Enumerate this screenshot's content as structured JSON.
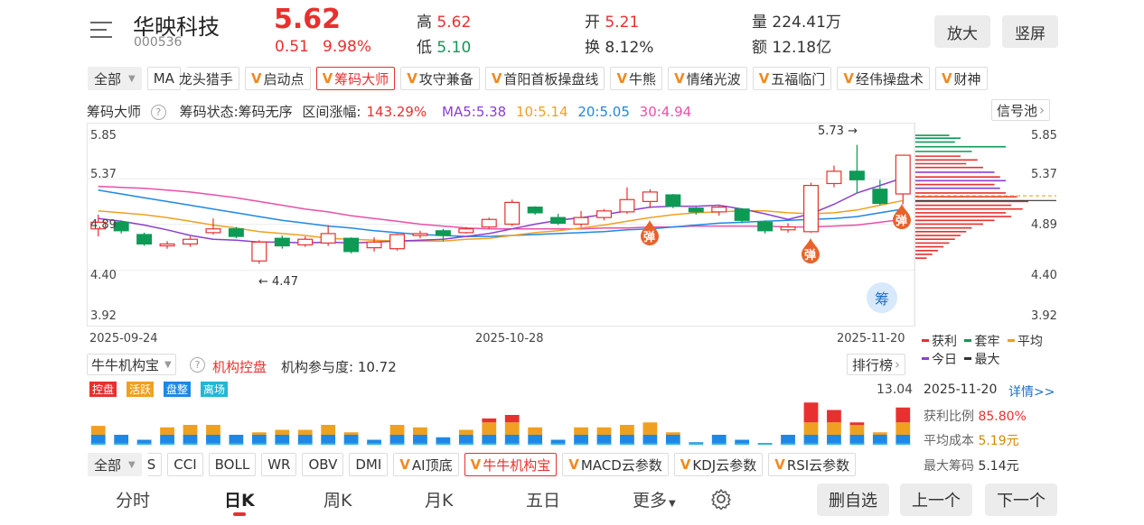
{
  "header": {
    "stock_name": "华映科技",
    "stock_code": "000536",
    "price": "5.62",
    "change": "0.51",
    "change_pct": "9.98%",
    "high_label": "高",
    "high": "5.62",
    "low_label": "低",
    "low": "5.10",
    "open_label": "开",
    "open": "5.21",
    "turnover_label": "换",
    "turnover": "8.12%",
    "volume_label": "量",
    "volume": "224.41万",
    "amount_label": "额",
    "amount": "12.18亿",
    "zoom_button": "放大",
    "portrait_button": "竖屏"
  },
  "indicator_tabs": {
    "all_label": "全部",
    "items": [
      "MA",
      "龙头猎手",
      "启动点",
      "筹码大师",
      "攻守兼备",
      "首阳首板操盘线",
      "牛熊",
      "情绪光波",
      "五福临门",
      "经伟操盘术",
      "财神"
    ]
  },
  "info_line": {
    "title": "筹码大师",
    "status": "筹码状态:筹码无序",
    "range": "区间涨幅:",
    "range_value": "143.29%",
    "ma5": "MA5:5.38",
    "ma10": "10:5.14",
    "ma20": "20:5.05",
    "ma30": "30:4.94",
    "signal_button": "信号池"
  },
  "price_axis": {
    "left": [
      "5.85",
      "5.37",
      "4.89",
      "4.40",
      "3.92"
    ],
    "right": [
      "5.85",
      "5.37",
      "4.89",
      "4.40",
      "3.92"
    ]
  },
  "annotations": {
    "high": "5.73",
    "low": "4.47",
    "tan": "弹",
    "chou": "筹"
  },
  "dates": [
    "2025-09-24",
    "2025-10-28",
    "2025-11-20"
  ],
  "chip_legend": {
    "profit": "获利",
    "trapped": "套牢",
    "avg": "平均",
    "today": "今日",
    "max": "最大"
  },
  "sub_panel": {
    "selector": "牛牛机构宝",
    "name": "机构控盘",
    "participation": "机构参与度: 10.72",
    "rank_button": "排行榜",
    "max_value": "13.04",
    "badges": [
      "控盘",
      "活跃",
      "盘整",
      "离场"
    ]
  },
  "chip_info": {
    "date": "2025-11-20",
    "detail": "详情>>",
    "profit_label": "获利比例",
    "profit_value": "85.80%",
    "avg_label": "平均成本",
    "avg_value": "5.19元",
    "max_label": "最大筹码",
    "max_value": "5.14元"
  },
  "bottom_tabs": {
    "all_label": "全部",
    "items": [
      "S",
      "CCI",
      "BOLL",
      "WR",
      "OBV",
      "DMI",
      "AI顶底",
      "牛牛机构宝",
      "MACD云参数",
      "KDJ云参数",
      "RSI云参数"
    ]
  },
  "bottom_nav": {
    "items": [
      "分时",
      "日K",
      "周K",
      "月K",
      "五日",
      "更多"
    ],
    "delete_button": "删自选",
    "prev_button": "上一个",
    "next_button": "下一个"
  },
  "colors": {
    "up": "#e8302f",
    "down": "#0d9a55",
    "ma5": "#8a3fd1",
    "ma10": "#f0a020",
    "ma20": "#1e88e5",
    "ma30": "#ea4fa8"
  },
  "chart_data": {
    "type": "candlestick",
    "y_range": [
      3.92,
      5.85
    ],
    "candles": [
      {
        "o": 4.84,
        "c": 4.91,
        "h": 4.99,
        "l": 4.76
      },
      {
        "o": 4.91,
        "c": 4.82,
        "h": 4.93,
        "l": 4.79
      },
      {
        "o": 4.78,
        "c": 4.68,
        "h": 4.8,
        "l": 4.66
      },
      {
        "o": 4.66,
        "c": 4.68,
        "h": 4.71,
        "l": 4.63
      },
      {
        "o": 4.68,
        "c": 4.73,
        "h": 4.76,
        "l": 4.65
      },
      {
        "o": 4.8,
        "c": 4.84,
        "h": 4.95,
        "l": 4.78
      },
      {
        "o": 4.84,
        "c": 4.76,
        "h": 4.86,
        "l": 4.74
      },
      {
        "o": 4.5,
        "c": 4.7,
        "h": 4.72,
        "l": 4.47
      },
      {
        "o": 4.74,
        "c": 4.66,
        "h": 4.77,
        "l": 4.63
      },
      {
        "o": 4.67,
        "c": 4.73,
        "h": 4.76,
        "l": 4.65
      },
      {
        "o": 4.69,
        "c": 4.79,
        "h": 4.88,
        "l": 4.66
      },
      {
        "o": 4.74,
        "c": 4.6,
        "h": 4.75,
        "l": 4.58
      },
      {
        "o": 4.64,
        "c": 4.7,
        "h": 4.75,
        "l": 4.6
      },
      {
        "o": 4.63,
        "c": 4.78,
        "h": 4.79,
        "l": 4.61
      },
      {
        "o": 4.77,
        "c": 4.79,
        "h": 4.82,
        "l": 4.74
      },
      {
        "o": 4.82,
        "c": 4.77,
        "h": 4.84,
        "l": 4.71
      },
      {
        "o": 4.8,
        "c": 4.84,
        "h": 4.86,
        "l": 4.79
      },
      {
        "o": 4.86,
        "c": 4.94,
        "h": 4.96,
        "l": 4.84
      },
      {
        "o": 4.89,
        "c": 5.12,
        "h": 5.15,
        "l": 4.87
      },
      {
        "o": 5.07,
        "c": 5.01,
        "h": 5.08,
        "l": 4.99
      },
      {
        "o": 4.96,
        "c": 4.9,
        "h": 5.0,
        "l": 4.88
      },
      {
        "o": 4.89,
        "c": 4.96,
        "h": 5.03,
        "l": 4.86
      },
      {
        "o": 4.96,
        "c": 5.03,
        "h": 5.05,
        "l": 4.93
      },
      {
        "o": 5.02,
        "c": 5.15,
        "h": 5.28,
        "l": 5.0
      },
      {
        "o": 5.13,
        "c": 5.23,
        "h": 5.26,
        "l": 5.06
      },
      {
        "o": 5.2,
        "c": 5.08,
        "h": 5.21,
        "l": 5.06
      },
      {
        "o": 5.06,
        "c": 5.02,
        "h": 5.07,
        "l": 4.99
      },
      {
        "o": 5.02,
        "c": 5.07,
        "h": 5.08,
        "l": 4.98
      },
      {
        "o": 5.05,
        "c": 4.93,
        "h": 5.06,
        "l": 4.9
      },
      {
        "o": 4.91,
        "c": 4.82,
        "h": 4.93,
        "l": 4.79
      },
      {
        "o": 4.83,
        "c": 4.86,
        "h": 4.9,
        "l": 4.8
      },
      {
        "o": 4.81,
        "c": 5.3,
        "h": 5.33,
        "l": 4.8
      },
      {
        "o": 5.32,
        "c": 5.45,
        "h": 5.51,
        "l": 5.28
      },
      {
        "o": 5.45,
        "c": 5.36,
        "h": 5.73,
        "l": 5.22
      },
      {
        "o": 5.26,
        "c": 5.11,
        "h": 5.36,
        "l": 5.09
      },
      {
        "o": 5.21,
        "c": 5.62,
        "h": 5.62,
        "l": 5.1
      }
    ],
    "ma5": [
      4.95,
      4.92,
      4.88,
      4.83,
      4.77,
      4.73,
      4.72,
      4.7,
      4.7,
      4.69,
      4.7,
      4.69,
      4.7,
      4.71,
      4.72,
      4.73,
      4.76,
      4.79,
      4.84,
      4.89,
      4.93,
      4.96,
      4.99,
      5.03,
      5.07,
      5.08,
      5.08,
      5.09,
      5.05,
      5.0,
      4.94,
      5.0,
      5.1,
      5.22,
      5.3,
      5.38
    ],
    "ma10": [
      5.03,
      5.01,
      4.99,
      4.96,
      4.92,
      4.88,
      4.85,
      4.81,
      4.79,
      4.77,
      4.74,
      4.73,
      4.72,
      4.71,
      4.71,
      4.71,
      4.73,
      4.74,
      4.77,
      4.8,
      4.82,
      4.85,
      4.88,
      4.92,
      4.96,
      4.99,
      5.01,
      5.02,
      5.03,
      5.03,
      5.01,
      5.0,
      5.01,
      5.04,
      5.09,
      5.14
    ],
    "ma20": [
      5.25,
      5.21,
      5.17,
      5.13,
      5.09,
      5.05,
      5.01,
      4.97,
      4.93,
      4.9,
      4.87,
      4.85,
      4.82,
      4.8,
      4.78,
      4.77,
      4.76,
      4.76,
      4.77,
      4.78,
      4.79,
      4.8,
      4.81,
      4.83,
      4.84,
      4.86,
      4.88,
      4.9,
      4.91,
      4.92,
      4.93,
      4.94,
      4.95,
      4.97,
      5.01,
      5.05
    ],
    "ma30": [
      5.29,
      5.28,
      5.27,
      5.25,
      5.23,
      5.2,
      5.17,
      5.13,
      5.09,
      5.05,
      5.02,
      4.98,
      4.95,
      4.92,
      4.89,
      4.87,
      4.85,
      4.84,
      4.84,
      4.84,
      4.84,
      4.84,
      4.85,
      4.85,
      4.86,
      4.86,
      4.87,
      4.87,
      4.87,
      4.87,
      4.86,
      4.86,
      4.87,
      4.88,
      4.91,
      4.94
    ],
    "institution_bars": [
      {
        "blue": 0.2,
        "orange": 0.18,
        "red": 0
      },
      {
        "blue": 0.2,
        "orange": 0,
        "red": 0
      },
      {
        "blue": 0.1,
        "orange": 0,
        "red": 0
      },
      {
        "blue": 0.2,
        "orange": 0.15,
        "red": 0
      },
      {
        "blue": 0.2,
        "orange": 0.2,
        "red": 0
      },
      {
        "blue": 0.2,
        "orange": 0.2,
        "red": 0
      },
      {
        "blue": 0.2,
        "orange": 0,
        "red": 0
      },
      {
        "blue": 0.2,
        "orange": 0.05,
        "red": 0
      },
      {
        "blue": 0.2,
        "orange": 0.1,
        "red": 0
      },
      {
        "blue": 0.2,
        "orange": 0.1,
        "red": 0
      },
      {
        "blue": 0.2,
        "orange": 0.2,
        "red": 0
      },
      {
        "blue": 0.2,
        "orange": 0.05,
        "red": 0
      },
      {
        "blue": 0.1,
        "orange": 0,
        "red": 0
      },
      {
        "blue": 0.2,
        "orange": 0.2,
        "red": 0
      },
      {
        "blue": 0.2,
        "orange": 0.15,
        "red": 0
      },
      {
        "blue": 0.15,
        "orange": 0,
        "red": 0
      },
      {
        "blue": 0.2,
        "orange": 0.1,
        "red": 0
      },
      {
        "blue": 0.2,
        "orange": 0.25,
        "red": 0.08
      },
      {
        "blue": 0.2,
        "orange": 0.25,
        "red": 0.15
      },
      {
        "blue": 0.2,
        "orange": 0.15,
        "red": 0
      },
      {
        "blue": 0.1,
        "orange": 0,
        "red": 0
      },
      {
        "blue": 0.2,
        "orange": 0.15,
        "red": 0
      },
      {
        "blue": 0.2,
        "orange": 0.15,
        "red": 0
      },
      {
        "blue": 0.2,
        "orange": 0.2,
        "red": 0
      },
      {
        "blue": 0.2,
        "orange": 0.25,
        "red": 0
      },
      {
        "blue": 0.2,
        "orange": 0.05,
        "red": 0
      },
      {
        "blue": 0.05,
        "orange": 0,
        "red": 0
      },
      {
        "blue": 0.2,
        "orange": 0,
        "red": 0
      },
      {
        "blue": 0.1,
        "orange": 0,
        "red": 0
      },
      {
        "blue": 0,
        "orange": 0,
        "red": 0
      },
      {
        "blue": 0.2,
        "orange": 0,
        "red": 0
      },
      {
        "blue": 0.2,
        "orange": 0.25,
        "red": 0.4
      },
      {
        "blue": 0.2,
        "orange": 0.25,
        "red": 0.25
      },
      {
        "blue": 0.2,
        "orange": 0.2,
        "red": 0.05
      },
      {
        "blue": 0.2,
        "orange": 0.05,
        "red": 0
      },
      {
        "blue": 0.2,
        "orange": 0.25,
        "red": 0.3
      }
    ],
    "chip_distribution": {
      "profit_color": "#e8302f",
      "trapped_color": "#0d9a55",
      "levels": [
        {
          "p": 5.83,
          "v": 0.3,
          "t": "trapped"
        },
        {
          "p": 5.8,
          "v": 0.4,
          "t": "trapped"
        },
        {
          "p": 5.76,
          "v": 0.35,
          "t": "trapped"
        },
        {
          "p": 5.71,
          "v": 0.8,
          "t": "trapped"
        },
        {
          "p": 5.66,
          "v": 0.5,
          "t": "trapped"
        },
        {
          "p": 5.61,
          "v": 0.4,
          "t": "profit"
        },
        {
          "p": 5.57,
          "v": 0.55,
          "t": "profit"
        },
        {
          "p": 5.53,
          "v": 0.45,
          "t": "profit"
        },
        {
          "p": 5.49,
          "v": 0.6,
          "t": "profit"
        },
        {
          "p": 5.44,
          "v": 0.7,
          "t": "today"
        },
        {
          "p": 5.39,
          "v": 0.75,
          "t": "profit"
        },
        {
          "p": 5.35,
          "v": 0.8,
          "t": "today"
        },
        {
          "p": 5.31,
          "v": 0.7,
          "t": "profit"
        },
        {
          "p": 5.27,
          "v": 0.75,
          "t": "today"
        },
        {
          "p": 5.22,
          "v": 0.8,
          "t": "profit"
        },
        {
          "p": 5.18,
          "v": 0.9,
          "t": "profit"
        },
        {
          "p": 5.13,
          "v": 1.0,
          "t": "profit"
        },
        {
          "p": 5.09,
          "v": 0.85,
          "t": "profit"
        },
        {
          "p": 5.05,
          "v": 0.95,
          "t": "profit"
        },
        {
          "p": 5.01,
          "v": 0.8,
          "t": "profit"
        },
        {
          "p": 4.97,
          "v": 0.85,
          "t": "profit"
        },
        {
          "p": 4.93,
          "v": 0.7,
          "t": "profit"
        },
        {
          "p": 4.89,
          "v": 0.6,
          "t": "profit"
        },
        {
          "p": 4.85,
          "v": 0.5,
          "t": "profit"
        },
        {
          "p": 4.81,
          "v": 0.45,
          "t": "profit"
        },
        {
          "p": 4.77,
          "v": 0.4,
          "t": "profit"
        },
        {
          "p": 4.73,
          "v": 0.35,
          "t": "profit"
        },
        {
          "p": 4.69,
          "v": 0.3,
          "t": "profit"
        },
        {
          "p": 4.65,
          "v": 0.25,
          "t": "profit"
        },
        {
          "p": 4.61,
          "v": 0.2,
          "t": "profit"
        },
        {
          "p": 4.57,
          "v": 0.15,
          "t": "profit"
        },
        {
          "p": 4.53,
          "v": 0.1,
          "t": "profit"
        }
      ]
    }
  }
}
